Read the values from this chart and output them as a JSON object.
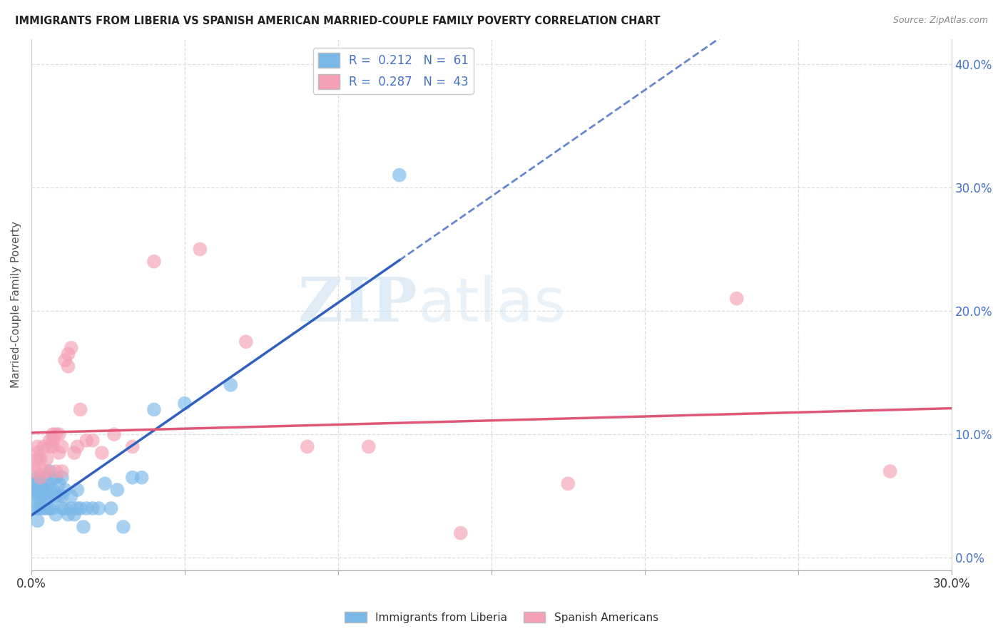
{
  "title": "IMMIGRANTS FROM LIBERIA VS SPANISH AMERICAN MARRIED-COUPLE FAMILY POVERTY CORRELATION CHART",
  "source": "Source: ZipAtlas.com",
  "ylabel": "Married-Couple Family Poverty",
  "xlabel": "",
  "xlim": [
    0.0,
    0.3
  ],
  "ylim": [
    -0.01,
    0.42
  ],
  "xticks": [
    0.0,
    0.05,
    0.1,
    0.15,
    0.2,
    0.25,
    0.3
  ],
  "yticks_right": [
    0.0,
    0.1,
    0.2,
    0.3,
    0.4
  ],
  "ytick_right_labels": [
    "0.0%",
    "10.0%",
    "20.0%",
    "30.0%",
    "40.0%"
  ],
  "xtick_labels": [
    "0.0%",
    "",
    "",
    "",
    "",
    "",
    "30.0%"
  ],
  "color_blue": "#7ab8e8",
  "color_pink": "#f4a0b5",
  "color_blue_line": "#3060c0",
  "color_pink_line": "#e05878",
  "background": "#ffffff",
  "watermark_zip": "ZIP",
  "watermark_atlas": "atlas",
  "blue_points_x": [
    0.001,
    0.001,
    0.001,
    0.001,
    0.002,
    0.002,
    0.002,
    0.002,
    0.002,
    0.002,
    0.003,
    0.003,
    0.003,
    0.003,
    0.003,
    0.004,
    0.004,
    0.004,
    0.004,
    0.005,
    0.005,
    0.005,
    0.005,
    0.006,
    0.006,
    0.006,
    0.006,
    0.007,
    0.007,
    0.007,
    0.008,
    0.008,
    0.008,
    0.009,
    0.009,
    0.01,
    0.01,
    0.01,
    0.011,
    0.011,
    0.012,
    0.013,
    0.013,
    0.014,
    0.015,
    0.015,
    0.016,
    0.017,
    0.018,
    0.02,
    0.022,
    0.024,
    0.026,
    0.028,
    0.03,
    0.033,
    0.036,
    0.04,
    0.05,
    0.065,
    0.12
  ],
  "blue_points_y": [
    0.04,
    0.05,
    0.055,
    0.06,
    0.03,
    0.04,
    0.05,
    0.055,
    0.06,
    0.065,
    0.04,
    0.05,
    0.055,
    0.06,
    0.065,
    0.04,
    0.05,
    0.055,
    0.065,
    0.04,
    0.05,
    0.055,
    0.065,
    0.04,
    0.05,
    0.055,
    0.07,
    0.04,
    0.055,
    0.065,
    0.035,
    0.05,
    0.065,
    0.05,
    0.06,
    0.04,
    0.05,
    0.065,
    0.04,
    0.055,
    0.035,
    0.04,
    0.05,
    0.035,
    0.04,
    0.055,
    0.04,
    0.025,
    0.04,
    0.04,
    0.04,
    0.06,
    0.04,
    0.055,
    0.025,
    0.065,
    0.065,
    0.12,
    0.125,
    0.14,
    0.31
  ],
  "pink_points_x": [
    0.001,
    0.001,
    0.002,
    0.002,
    0.002,
    0.003,
    0.003,
    0.004,
    0.004,
    0.005,
    0.005,
    0.006,
    0.006,
    0.007,
    0.007,
    0.007,
    0.008,
    0.008,
    0.009,
    0.009,
    0.01,
    0.01,
    0.011,
    0.012,
    0.012,
    0.013,
    0.014,
    0.015,
    0.016,
    0.018,
    0.02,
    0.023,
    0.027,
    0.033,
    0.04,
    0.055,
    0.07,
    0.09,
    0.11,
    0.14,
    0.175,
    0.23,
    0.28
  ],
  "pink_points_y": [
    0.07,
    0.075,
    0.08,
    0.085,
    0.09,
    0.065,
    0.08,
    0.07,
    0.09,
    0.07,
    0.08,
    0.09,
    0.095,
    0.09,
    0.095,
    0.1,
    0.07,
    0.1,
    0.085,
    0.1,
    0.07,
    0.09,
    0.16,
    0.155,
    0.165,
    0.17,
    0.085,
    0.09,
    0.12,
    0.095,
    0.095,
    0.085,
    0.1,
    0.09,
    0.24,
    0.25,
    0.175,
    0.09,
    0.09,
    0.02,
    0.06,
    0.21,
    0.07
  ]
}
